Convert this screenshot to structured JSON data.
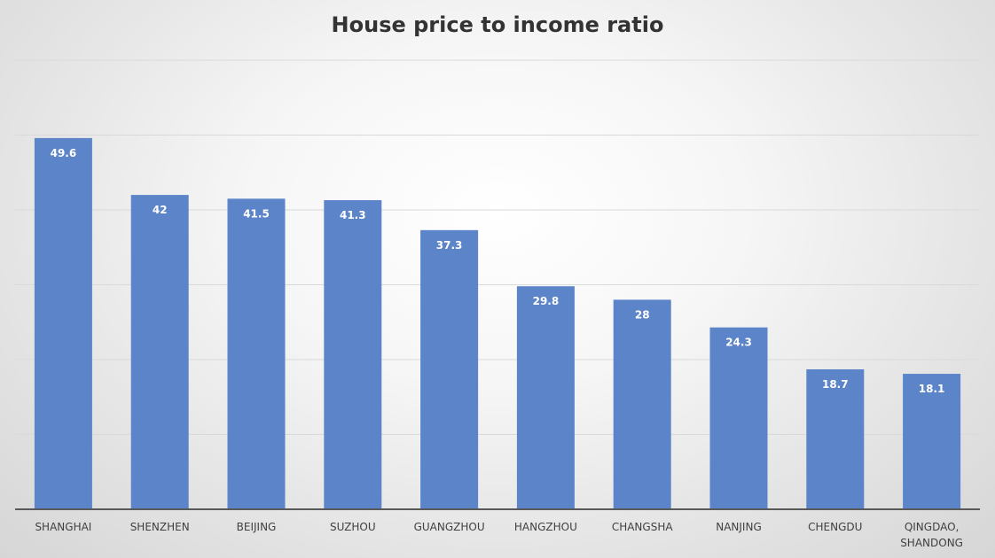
{
  "chart_data": {
    "type": "bar",
    "title": "House price to income ratio",
    "categories": [
      "SHANGHAI",
      "SHENZHEN",
      "BEIJING",
      "SUZHOU",
      "GUANGZHOU",
      "HANGZHOU",
      "CHANGSHA",
      "NANJING",
      "CHENGDU",
      "QINGDAO, SHANDONG"
    ],
    "values": [
      49.6,
      42,
      41.5,
      41.3,
      37.3,
      29.8,
      28,
      24.3,
      18.7,
      18.1
    ],
    "xlabel": "",
    "ylabel": "",
    "ylim": [
      0,
      60
    ],
    "grid": true,
    "legend": "none",
    "y_tick_labels_shown": false,
    "bar_color": "#5b84c9",
    "data_label_color": "#ffffff"
  }
}
